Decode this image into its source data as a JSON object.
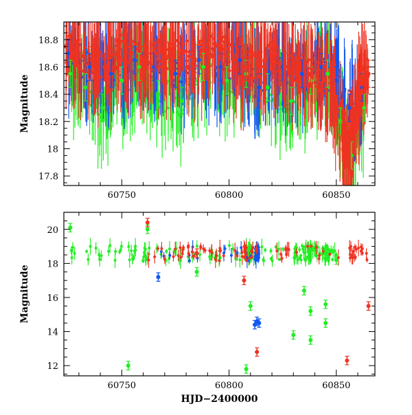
{
  "chart_data": [
    {
      "type": "scatter",
      "title": "",
      "xlabel": "",
      "ylabel": "Magnitude",
      "xlim": [
        60723,
        60868
      ],
      "ylim": [
        18.93,
        17.73
      ],
      "y_inverted": true,
      "x_ticks": [
        "60750",
        "60800",
        "60850"
      ],
      "y_ticks": [
        "17.8",
        "18",
        "18.2",
        "18.4",
        "18.6",
        "18.8"
      ],
      "error_bars": true,
      "series": [
        {
          "color": "#22ee22",
          "x": [
            60726,
            60733,
            60741,
            60750,
            60758,
            60767,
            60778,
            60788,
            60799,
            60808,
            60818,
            60829,
            60838,
            60846,
            60852,
            60857,
            60863
          ],
          "y": [
            18.55,
            18.45,
            18.3,
            18.5,
            18.6,
            18.4,
            18.35,
            18.6,
            18.5,
            18.55,
            18.45,
            18.35,
            18.5,
            18.55,
            18.2,
            17.95,
            18.3
          ]
        },
        {
          "color": "#1155ee",
          "x": [
            60725,
            60735,
            60745,
            60756,
            60765,
            60775,
            60786,
            60796,
            60805,
            60814,
            60825,
            60834,
            60843,
            60850,
            60856,
            60862
          ],
          "y": [
            18.7,
            18.6,
            18.55,
            18.65,
            18.6,
            18.55,
            18.65,
            18.6,
            18.65,
            18.45,
            18.6,
            18.55,
            18.6,
            18.5,
            18.3,
            18.45
          ]
        },
        {
          "color": "#ee3322",
          "x": [
            60724,
            60729,
            60736,
            60742,
            60748,
            60754,
            60760,
            60766,
            60772,
            60778,
            60784,
            60790,
            60796,
            60802,
            60808,
            60814,
            60820,
            60826,
            60832,
            60838,
            60844,
            60849,
            60853,
            60856,
            60859,
            60862,
            60865
          ],
          "y": [
            18.75,
            18.7,
            18.65,
            18.6,
            18.7,
            18.75,
            18.65,
            18.7,
            18.68,
            18.72,
            18.66,
            18.7,
            18.75,
            18.65,
            18.6,
            18.62,
            18.68,
            18.6,
            18.58,
            18.55,
            18.5,
            18.4,
            18.1,
            17.95,
            18.25,
            18.5,
            18.55
          ]
        }
      ]
    },
    {
      "type": "scatter",
      "title": "",
      "xlabel": "HJD−2400000",
      "ylabel": "Magnitude",
      "xlim": [
        60723,
        60868
      ],
      "ylim": [
        21,
        11.4
      ],
      "y_inverted": true,
      "x_ticks": [
        "60750",
        "60800",
        "60850"
      ],
      "y_ticks": [
        "12",
        "14",
        "16",
        "18",
        "20"
      ],
      "error_bars": true,
      "series": [
        {
          "color": "#22ee22",
          "x": [
            60726,
            60753,
            60762,
            60785,
            60808,
            60810,
            60830,
            60835,
            60838,
            60838,
            60845,
            60845,
            60850
          ],
          "y": [
            20.1,
            12.0,
            20.0,
            17.5,
            11.8,
            15.5,
            13.8,
            16.4,
            13.5,
            15.2,
            14.5,
            15.6,
            18.2
          ]
        },
        {
          "color": "#1155ee",
          "x": [
            60767,
            60812,
            60813,
            60814
          ],
          "y": [
            17.2,
            14.4,
            14.6,
            14.5
          ]
        },
        {
          "color": "#ee3322",
          "x": [
            60762,
            60785,
            60807,
            60813,
            60855,
            60865
          ],
          "y": [
            20.4,
            18.6,
            17.0,
            12.8,
            12.3,
            15.5
          ]
        }
      ]
    }
  ]
}
